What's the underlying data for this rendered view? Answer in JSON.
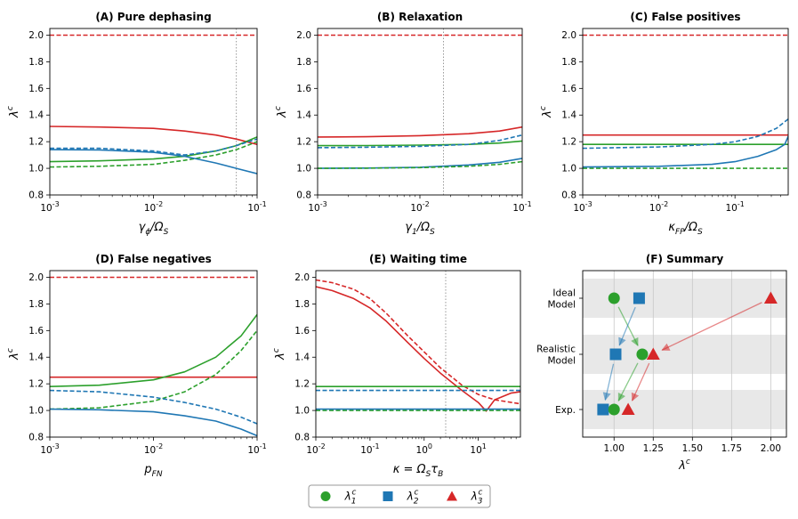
{
  "colors": {
    "green": "#2ca02c",
    "blue": "#1f77b4",
    "red": "#d62728",
    "band": "#e8e8e8",
    "grid": "#c8c8c8",
    "vline": "#999999"
  },
  "legend": {
    "items": [
      {
        "label": "λ1c",
        "color": "#2ca02c",
        "marker": "circle"
      },
      {
        "label": "λ2c",
        "color": "#1f77b4",
        "marker": "square"
      },
      {
        "label": "λ3c",
        "color": "#d62728",
        "marker": "triangle"
      }
    ]
  },
  "chart_data": [
    {
      "id": "A",
      "type": "line",
      "title": "(A) Pure dephasing",
      "xlabel": "γϕ/ΩS",
      "ylabel": "λc",
      "xscale": "log",
      "xlim": [
        0.001,
        0.1
      ],
      "ylim": [
        0.8,
        2.05
      ],
      "yticks": [
        0.8,
        1.0,
        1.2,
        1.4,
        1.6,
        1.8,
        2.0
      ],
      "yticklabels": [
        "0.8",
        "1.0",
        "1.2",
        "1.4",
        "1.6",
        "1.8",
        "2.0"
      ],
      "xticks": [
        0.001,
        0.01,
        0.1
      ],
      "xticklabels": [
        "10-3",
        "10-2",
        "10-1"
      ],
      "vline": 0.063,
      "series": [
        {
          "name": "λ3c realistic",
          "color": "red",
          "dash": false,
          "x": [
            0.001,
            0.003,
            0.01,
            0.02,
            0.04,
            0.063,
            0.1
          ],
          "y": [
            1.315,
            1.31,
            1.3,
            1.28,
            1.25,
            1.22,
            1.18
          ]
        },
        {
          "name": "λ3c ideal",
          "color": "red",
          "dash": true,
          "x": [
            0.001,
            0.1
          ],
          "y": [
            2.0,
            2.0
          ]
        },
        {
          "name": "λ1c realistic",
          "color": "green",
          "dash": false,
          "x": [
            0.001,
            0.003,
            0.01,
            0.02,
            0.04,
            0.063,
            0.1
          ],
          "y": [
            1.05,
            1.056,
            1.07,
            1.09,
            1.13,
            1.17,
            1.235
          ]
        },
        {
          "name": "λ1c dashed",
          "color": "green",
          "dash": true,
          "x": [
            0.001,
            0.003,
            0.01,
            0.02,
            0.04,
            0.063,
            0.1
          ],
          "y": [
            1.01,
            1.015,
            1.03,
            1.06,
            1.1,
            1.14,
            1.2
          ]
        },
        {
          "name": "λ2c realistic",
          "color": "blue",
          "dash": false,
          "x": [
            0.001,
            0.003,
            0.01,
            0.02,
            0.04,
            0.063,
            0.1
          ],
          "y": [
            1.14,
            1.138,
            1.12,
            1.09,
            1.04,
            1.0,
            0.96
          ]
        },
        {
          "name": "λ2c dashed",
          "color": "blue",
          "dash": true,
          "x": [
            0.001,
            0.003,
            0.01,
            0.02,
            0.04,
            0.063,
            0.1
          ],
          "y": [
            1.15,
            1.15,
            1.13,
            1.1,
            1.13,
            1.17,
            1.22
          ]
        }
      ]
    },
    {
      "id": "B",
      "type": "line",
      "title": "(B) Relaxation",
      "xlabel": "γ1/ΩS",
      "ylabel": "λc",
      "xscale": "log",
      "xlim": [
        0.001,
        0.1
      ],
      "ylim": [
        0.8,
        2.05
      ],
      "yticks": [
        0.8,
        1.0,
        1.2,
        1.4,
        1.6,
        1.8,
        2.0
      ],
      "yticklabels": [
        "0.8",
        "1.0",
        "1.2",
        "1.4",
        "1.6",
        "1.8",
        "2.0"
      ],
      "xticks": [
        0.001,
        0.01,
        0.1
      ],
      "xticklabels": [
        "10-3",
        "10-2",
        "10-1"
      ],
      "vline": 0.017,
      "series": [
        {
          "name": "λ3c realistic",
          "color": "red",
          "dash": false,
          "x": [
            0.001,
            0.003,
            0.01,
            0.03,
            0.06,
            0.1
          ],
          "y": [
            1.235,
            1.237,
            1.245,
            1.26,
            1.28,
            1.31
          ]
        },
        {
          "name": "λ3c ideal",
          "color": "red",
          "dash": true,
          "x": [
            0.001,
            0.1
          ],
          "y": [
            2.0,
            2.0
          ]
        },
        {
          "name": "λ1c realistic",
          "color": "green",
          "dash": false,
          "x": [
            0.001,
            0.003,
            0.01,
            0.03,
            0.06,
            0.1
          ],
          "y": [
            1.17,
            1.171,
            1.174,
            1.18,
            1.19,
            1.205
          ]
        },
        {
          "name": "λ2c dashed",
          "color": "blue",
          "dash": true,
          "x": [
            0.001,
            0.003,
            0.01,
            0.03,
            0.06,
            0.1
          ],
          "y": [
            1.155,
            1.158,
            1.165,
            1.18,
            1.21,
            1.25
          ]
        },
        {
          "name": "λ2c realistic",
          "color": "blue",
          "dash": false,
          "x": [
            0.001,
            0.003,
            0.01,
            0.03,
            0.06,
            0.1
          ],
          "y": [
            1.0,
            1.002,
            1.008,
            1.025,
            1.045,
            1.075
          ]
        },
        {
          "name": "λ1c dashed",
          "color": "green",
          "dash": true,
          "x": [
            0.001,
            0.003,
            0.01,
            0.03,
            0.06,
            0.1
          ],
          "y": [
            1.0,
            1.001,
            1.005,
            1.015,
            1.03,
            1.05
          ]
        }
      ]
    },
    {
      "id": "C",
      "type": "line",
      "title": "(C) False positives",
      "xlabel": "κFP/ΩS",
      "ylabel": "λc",
      "xscale": "log",
      "xlim": [
        0.001,
        0.5
      ],
      "ylim": [
        0.8,
        2.05
      ],
      "yticks": [
        0.8,
        1.0,
        1.2,
        1.4,
        1.6,
        1.8,
        2.0
      ],
      "yticklabels": [
        "0.8",
        "1.0",
        "1.2",
        "1.4",
        "1.6",
        "1.8",
        "2.0"
      ],
      "xticks": [
        0.001,
        0.01,
        0.1
      ],
      "xticklabels": [
        "10-3",
        "10-2",
        "10-1"
      ],
      "vline": null,
      "series": [
        {
          "name": "λ3c realistic",
          "color": "red",
          "dash": false,
          "x": [
            0.001,
            0.5
          ],
          "y": [
            1.25,
            1.25
          ]
        },
        {
          "name": "λ3c ideal",
          "color": "red",
          "dash": true,
          "x": [
            0.001,
            0.5
          ],
          "y": [
            2.0,
            2.0
          ]
        },
        {
          "name": "λ1c realistic",
          "color": "green",
          "dash": false,
          "x": [
            0.001,
            0.5
          ],
          "y": [
            1.18,
            1.18
          ]
        },
        {
          "name": "λ1c dashed",
          "color": "green",
          "dash": true,
          "x": [
            0.001,
            0.5
          ],
          "y": [
            1.0,
            1.0
          ]
        },
        {
          "name": "λ2c dashed",
          "color": "blue",
          "dash": true,
          "x": [
            0.001,
            0.01,
            0.05,
            0.1,
            0.2,
            0.35,
            0.5
          ],
          "y": [
            1.15,
            1.16,
            1.18,
            1.2,
            1.24,
            1.3,
            1.37
          ]
        },
        {
          "name": "λ2c realistic",
          "color": "blue",
          "dash": false,
          "x": [
            0.001,
            0.01,
            0.05,
            0.1,
            0.2,
            0.35,
            0.45,
            0.5
          ],
          "y": [
            1.01,
            1.015,
            1.03,
            1.05,
            1.09,
            1.14,
            1.18,
            1.24
          ]
        }
      ]
    },
    {
      "id": "D",
      "type": "line",
      "title": "(D) False negatives",
      "xlabel": "pFN",
      "ylabel": "λc",
      "xscale": "log",
      "xlim": [
        0.001,
        0.1
      ],
      "ylim": [
        0.8,
        2.05
      ],
      "yticks": [
        0.8,
        1.0,
        1.2,
        1.4,
        1.6,
        1.8,
        2.0
      ],
      "yticklabels": [
        "0.8",
        "1.0",
        "1.2",
        "1.4",
        "1.6",
        "1.8",
        "2.0"
      ],
      "xticks": [
        0.001,
        0.01,
        0.1
      ],
      "xticklabels": [
        "10-3",
        "10-2",
        "10-1"
      ],
      "vline": null,
      "series": [
        {
          "name": "λ3c realistic",
          "color": "red",
          "dash": false,
          "x": [
            0.001,
            0.1
          ],
          "y": [
            1.25,
            1.25
          ]
        },
        {
          "name": "λ3c ideal",
          "color": "red",
          "dash": true,
          "x": [
            0.001,
            0.1
          ],
          "y": [
            2.0,
            2.0
          ]
        },
        {
          "name": "λ1c realistic",
          "color": "green",
          "dash": false,
          "x": [
            0.001,
            0.003,
            0.01,
            0.02,
            0.04,
            0.07,
            0.1
          ],
          "y": [
            1.18,
            1.19,
            1.23,
            1.29,
            1.4,
            1.56,
            1.72
          ]
        },
        {
          "name": "λ1c dashed",
          "color": "green",
          "dash": true,
          "x": [
            0.001,
            0.003,
            0.01,
            0.02,
            0.04,
            0.07,
            0.1
          ],
          "y": [
            1.01,
            1.02,
            1.07,
            1.14,
            1.27,
            1.45,
            1.6
          ]
        },
        {
          "name": "λ2c dashed",
          "color": "blue",
          "dash": true,
          "x": [
            0.001,
            0.003,
            0.01,
            0.02,
            0.04,
            0.07,
            0.1
          ],
          "y": [
            1.15,
            1.14,
            1.1,
            1.06,
            1.01,
            0.95,
            0.9
          ]
        },
        {
          "name": "λ2c realistic",
          "color": "blue",
          "dash": false,
          "x": [
            0.001,
            0.003,
            0.01,
            0.02,
            0.04,
            0.07,
            0.1
          ],
          "y": [
            1.01,
            1.005,
            0.99,
            0.96,
            0.92,
            0.86,
            0.81
          ]
        }
      ]
    },
    {
      "id": "E",
      "type": "line",
      "title": "(E) Waiting time",
      "xlabel": "κ = ΩSτB",
      "ylabel": "λc",
      "xscale": "log",
      "xlim": [
        0.01,
        60
      ],
      "ylim": [
        0.8,
        2.05
      ],
      "yticks": [
        0.8,
        1.0,
        1.2,
        1.4,
        1.6,
        1.8,
        2.0
      ],
      "yticklabels": [
        "0.8",
        "1.0",
        "1.2",
        "1.4",
        "1.6",
        "1.8",
        "2.0"
      ],
      "xticks": [
        0.01,
        0.1,
        1,
        10
      ],
      "xticklabels": [
        "10-2",
        "10-1",
        "100",
        "101"
      ],
      "vline": 2.5,
      "series": [
        {
          "name": "λ3c ideal",
          "color": "red",
          "dash": true,
          "x": [
            0.01,
            0.02,
            0.05,
            0.1,
            0.2,
            0.5,
            1,
            2,
            5,
            10,
            20,
            60
          ],
          "y": [
            1.98,
            1.96,
            1.91,
            1.84,
            1.73,
            1.56,
            1.44,
            1.32,
            1.19,
            1.12,
            1.08,
            1.05
          ]
        },
        {
          "name": "λ3c realistic",
          "color": "red",
          "dash": false,
          "x": [
            0.01,
            0.02,
            0.05,
            0.1,
            0.2,
            0.5,
            1,
            2,
            5,
            10,
            14,
            20,
            40,
            60
          ],
          "y": [
            1.93,
            1.9,
            1.84,
            1.77,
            1.67,
            1.51,
            1.39,
            1.28,
            1.15,
            1.06,
            0.995,
            1.08,
            1.13,
            1.14
          ]
        },
        {
          "name": "λ1c realistic",
          "color": "green",
          "dash": false,
          "x": [
            0.01,
            60
          ],
          "y": [
            1.18,
            1.18
          ]
        },
        {
          "name": "λ2c dashed",
          "color": "blue",
          "dash": true,
          "x": [
            0.01,
            60
          ],
          "y": [
            1.15,
            1.15
          ]
        },
        {
          "name": "λ1c dashed",
          "color": "green",
          "dash": true,
          "x": [
            0.01,
            60
          ],
          "y": [
            1.0,
            1.0
          ]
        },
        {
          "name": "λ2c realistic",
          "color": "blue",
          "dash": false,
          "x": [
            0.01,
            60
          ],
          "y": [
            1.01,
            1.01
          ]
        }
      ]
    },
    {
      "id": "F",
      "type": "scatter",
      "title": "(F) Summary",
      "xlabel": "λc",
      "xlim": [
        0.8,
        2.1
      ],
      "xticks": [
        1.0,
        1.25,
        1.5,
        1.75,
        2.0
      ],
      "xticklabels": [
        "1.00",
        "1.25",
        "1.50",
        "1.75",
        "2.00"
      ],
      "categories": [
        "Ideal Model",
        "Realistic Model",
        "Exp."
      ],
      "category_lines": [
        [
          "Ideal",
          "Model"
        ],
        [
          "Realistic",
          "Model"
        ],
        [
          "Exp."
        ]
      ],
      "points": [
        {
          "row": 0,
          "marker": "circle",
          "color": "green",
          "x": 1.0
        },
        {
          "row": 0,
          "marker": "square",
          "color": "blue",
          "x": 1.16
        },
        {
          "row": 0,
          "marker": "triangle",
          "color": "red",
          "x": 2.0
        },
        {
          "row": 1,
          "marker": "square",
          "color": "blue",
          "x": 1.01
        },
        {
          "row": 1,
          "marker": "circle",
          "color": "green",
          "x": 1.18
        },
        {
          "row": 1,
          "marker": "triangle",
          "color": "red",
          "x": 1.25
        },
        {
          "row": 2,
          "marker": "square",
          "color": "blue",
          "x": 0.93
        },
        {
          "row": 2,
          "marker": "circle",
          "color": "green",
          "x": 1.0
        },
        {
          "row": 2,
          "marker": "triangle",
          "color": "red",
          "x": 1.09
        }
      ],
      "arrows": [
        {
          "color": "green",
          "from": [
            1.0,
            0
          ],
          "to": [
            1.18,
            1
          ]
        },
        {
          "color": "blue",
          "from": [
            1.16,
            0
          ],
          "to": [
            1.01,
            1
          ]
        },
        {
          "color": "red",
          "from": [
            2.0,
            0
          ],
          "to": [
            1.25,
            1
          ]
        },
        {
          "color": "blue",
          "from": [
            1.01,
            1
          ],
          "to": [
            0.93,
            2
          ]
        },
        {
          "color": "green",
          "from": [
            1.18,
            1
          ],
          "to": [
            1.0,
            2
          ]
        },
        {
          "color": "red",
          "from": [
            1.25,
            1
          ],
          "to": [
            1.09,
            2
          ]
        }
      ]
    }
  ]
}
